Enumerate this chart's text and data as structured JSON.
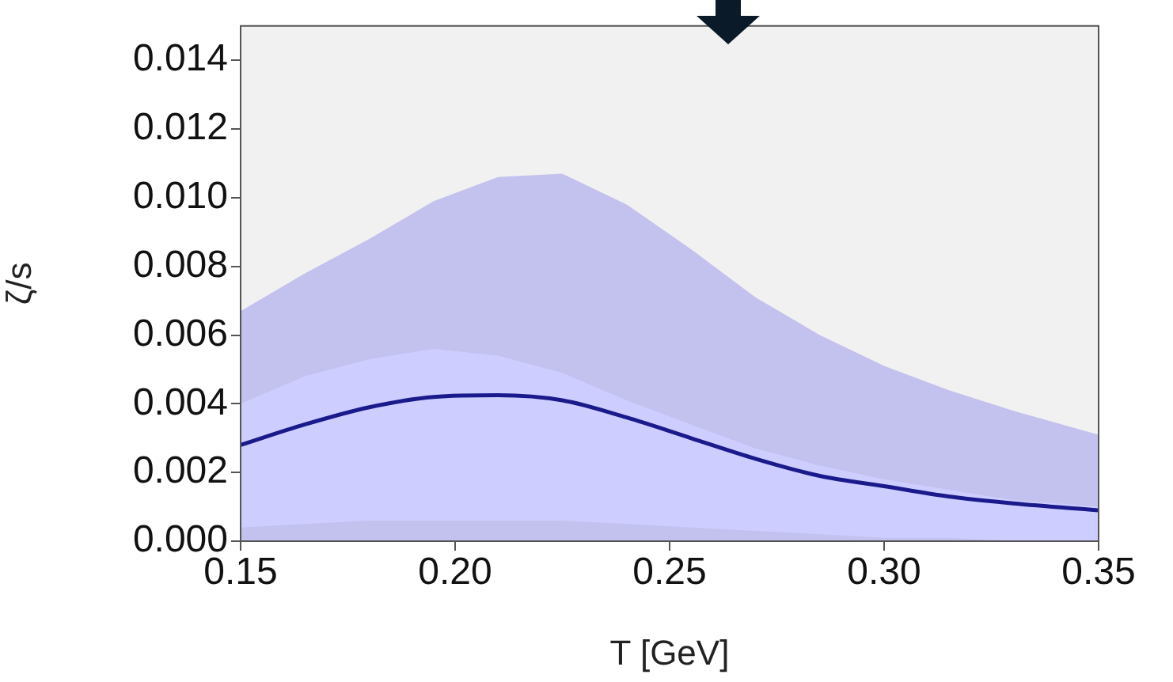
{
  "chart_data": {
    "type": "line",
    "xlabel": "T [GeV]",
    "ylabel": "ζ/s",
    "xlim": [
      0.15,
      0.35
    ],
    "ylim": [
      0,
      0.015
    ],
    "xticks": [
      0.15,
      {
        "value": 0.2,
        "label": "0.20"
      },
      0.25,
      {
        "value": 0.3,
        "label": "0.30"
      },
      0.35
    ],
    "yticks": [
      {
        "value": 0,
        "label": "0.000"
      },
      0.002,
      0.004,
      0.006,
      0.008,
      {
        "value": 0.01,
        "label": "0.010"
      },
      0.012,
      0.014
    ],
    "legend": false,
    "series": [
      {
        "type": "area",
        "color": "#c3c1ee",
        "x": [
          0.15,
          0.165,
          0.18,
          0.195,
          0.21,
          0.225,
          0.24,
          0.255,
          0.27,
          0.285,
          0.3,
          0.315,
          0.33,
          0.35
        ],
        "values": [
          0.0067,
          0.0078,
          0.0088,
          0.0099,
          0.0106,
          0.0107,
          0.0098,
          0.0085,
          0.0071,
          0.006,
          0.0051,
          0.0044,
          0.0038,
          0.0031
        ]
      },
      {
        "color": "#1a1a8c",
        "x": [
          0.15,
          0.165,
          0.18,
          0.195,
          0.21,
          0.225,
          0.24,
          0.255,
          0.27,
          0.285,
          0.3,
          0.315,
          0.33,
          0.35
        ],
        "values": [
          0.0028,
          0.0034,
          0.0039,
          0.0042,
          0.00425,
          0.0041,
          0.0036,
          0.003,
          0.0024,
          0.0019,
          0.0016,
          0.0013,
          0.0011,
          0.0009
        ],
        "lower": [
          0.0004,
          0.0005,
          0.0006,
          0.0006,
          0.0006,
          0.0006,
          0.0005,
          0.0004,
          0.0003,
          0.0002,
          0.0001,
          0.0001,
          0,
          0
        ],
        "upper": [
          0.004,
          0.0048,
          0.0053,
          0.0056,
          0.0054,
          0.0049,
          0.0041,
          0.0034,
          0.0027,
          0.0022,
          0.0018,
          0.0015,
          0.0012,
          0.001
        ]
      }
    ]
  }
}
